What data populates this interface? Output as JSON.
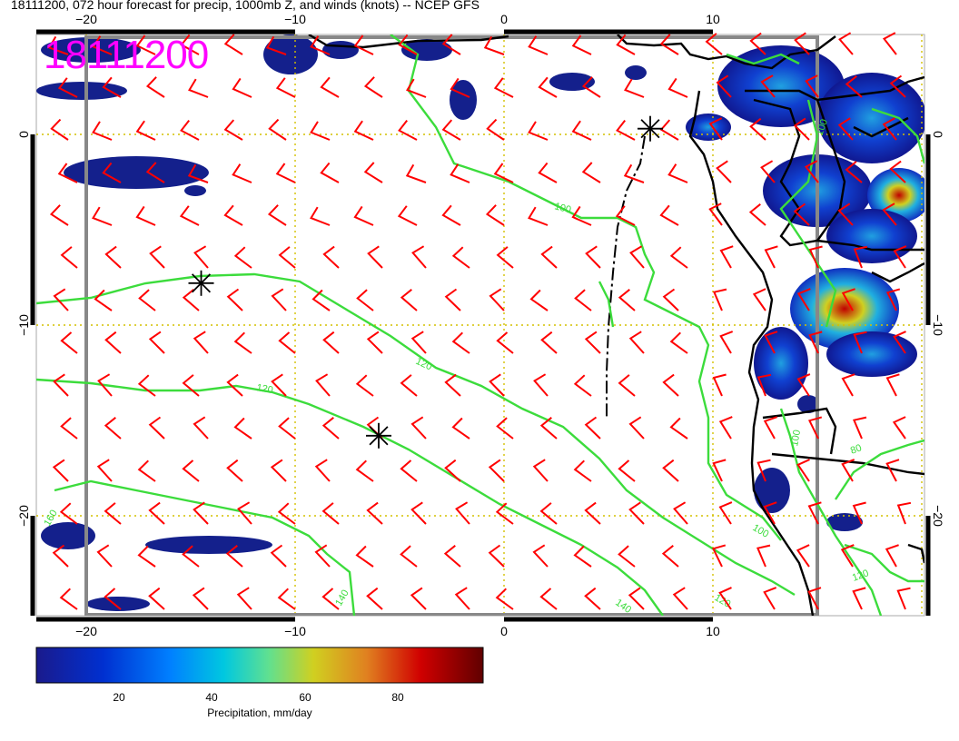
{
  "title": "18111200, 072 hour forecast for precip, 1000mb Z, and winds (knots) -- NCEP GFS",
  "stamp": "18111200",
  "colorbar": {
    "label": "Precipitation, mm/day",
    "ticks": [
      "20",
      "40",
      "60",
      "80"
    ],
    "tick_values": [
      20,
      40,
      60,
      80
    ],
    "range": [
      0,
      97
    ],
    "colors": [
      "#1a1a8c",
      "#0030d0",
      "#0080ff",
      "#00c8e0",
      "#60e090",
      "#d0d020",
      "#e08020",
      "#d00000",
      "#600000"
    ]
  },
  "map": {
    "lon_range": [
      -22.5,
      20
    ],
    "lat_range": [
      -25,
      5
    ],
    "lon_ticks": [
      -20,
      -10,
      0,
      10
    ],
    "lat_ticks": [
      0,
      -10,
      -20
    ],
    "lon_tick_labels": [
      "−20",
      "−10",
      "0",
      "10"
    ],
    "lat_tick_labels_left": [
      "0",
      "−10",
      "−20"
    ],
    "lat_tick_labels_right": [
      "0",
      "−10",
      "−20"
    ],
    "contour_labels": [
      "100",
      "120",
      "120",
      "140",
      "160",
      "140",
      "120",
      "100",
      "100",
      "80",
      "120",
      "100"
    ],
    "markers": [
      {
        "lon": 7.0,
        "lat": 0.3
      },
      {
        "lon": -14.5,
        "lat": -7.8
      },
      {
        "lon": -6.0,
        "lat": -15.8
      }
    ],
    "colors": {
      "contour": "#3cdc3c",
      "barb": "#ff0000",
      "grid": "#d4c000",
      "box": "#808080",
      "coast": "#000000"
    }
  }
}
